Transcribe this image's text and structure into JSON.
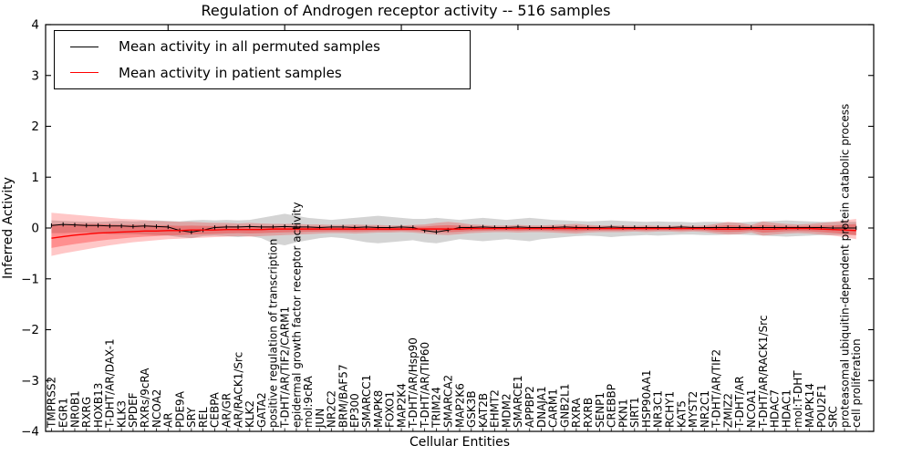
{
  "chart_data": {
    "type": "line",
    "title": "Regulation of Androgen receptor activity -- 516 samples",
    "xlabel": "Cellular Entities",
    "ylabel": "Inferred Activity",
    "ylim": [
      -4,
      4
    ],
    "yticks": [
      4,
      3,
      2,
      1,
      0,
      -1,
      -2,
      -3,
      -4
    ],
    "grid": false,
    "legend_position": "upper left",
    "sample_count_in_title": "516",
    "categories": [
      "TMPRSS2",
      "EGR1",
      "NR0B1",
      "RXRG",
      "HOXB13",
      "T-DHT/AR/DAX-1",
      "KLK3",
      "SPDEF",
      "RXRs/9cRA",
      "NCOA2",
      "AR",
      "PDE9A",
      "SRY",
      "REL",
      "CEBPA",
      "AR/GR",
      "AR/RACK1/Src",
      "KLK2",
      "GATA2",
      "positive regulation of transcription",
      "T-DHT/AR/TIF2/CARM1",
      "epidermal growth factor receptor activity",
      "mol:9cRA",
      "JUN",
      "NR2C2",
      "BRM/BAF57",
      "EP300",
      "SMARCC1",
      "MAPK8",
      "FOXO1",
      "MAP2K4",
      "T-DHT/AR/Hsp90",
      "T-DHT/AR/TIP60",
      "TRIM24",
      "SMARCA2",
      "MAP2K6",
      "GSK3B",
      "KAT2B",
      "EHMT2",
      "MDM2",
      "SMARCE1",
      "APPBP2",
      "DNAJA1",
      "CARM1",
      "GNB2L1",
      "RXRA",
      "RXRB",
      "SENP1",
      "CREBBP",
      "PKN1",
      "SIRT1",
      "HSP90AA1",
      "NR3C1",
      "RCHY1",
      "KAT5",
      "MYST2",
      "NR2C1",
      "T-DHT/AR/TIF2",
      "ZMIZ2",
      "T-DHT/AR",
      "NCOA1",
      "T-DHT/AR/RACK1/Src",
      "HDAC7",
      "HDAC1",
      "mol:T-DHT",
      "MAPK14",
      "POU2F1",
      "SRC",
      "proteasomal ubiquitin-dependent protein catabolic process",
      "cell proliferation"
    ],
    "series": [
      {
        "name": "Mean activity in all permuted samples",
        "color": "#000000",
        "band_color": "#787878",
        "values": [
          0.05,
          0.07,
          0.06,
          0.05,
          0.05,
          0.04,
          0.04,
          0.03,
          0.04,
          0.03,
          0.02,
          -0.05,
          -0.08,
          -0.04,
          0.01,
          0.02,
          0.02,
          0.03,
          0.02,
          0.02,
          0.03,
          0.02,
          0.02,
          0.01,
          0.02,
          0.02,
          0.01,
          0.02,
          0.01,
          0.01,
          0.02,
          0.01,
          -0.05,
          -0.08,
          -0.04,
          0.01,
          0.01,
          0.02,
          0.01,
          0.01,
          0.02,
          0.01,
          0.01,
          0.01,
          0.02,
          0.01,
          0.01,
          0.01,
          0.02,
          0.01,
          0.01,
          0.01,
          0.01,
          0.01,
          0.02,
          0.01,
          0.01,
          0.01,
          0.01,
          0.01,
          0.01,
          0.01,
          0.01,
          0.01,
          0.01,
          0.01,
          0.01,
          0.0,
          0.0,
          0.0
        ],
        "band_upper": [
          0.15,
          0.14,
          0.13,
          0.12,
          0.12,
          0.13,
          0.14,
          0.13,
          0.14,
          0.15,
          0.14,
          0.13,
          0.15,
          0.16,
          0.15,
          0.16,
          0.15,
          0.16,
          0.2,
          0.24,
          0.28,
          0.24,
          0.2,
          0.18,
          0.16,
          0.18,
          0.2,
          0.22,
          0.24,
          0.22,
          0.2,
          0.18,
          0.18,
          0.2,
          0.18,
          0.16,
          0.18,
          0.2,
          0.18,
          0.16,
          0.18,
          0.2,
          0.18,
          0.16,
          0.15,
          0.14,
          0.13,
          0.14,
          0.15,
          0.14,
          0.13,
          0.12,
          0.13,
          0.12,
          0.12,
          0.11,
          0.12,
          0.12,
          0.11,
          0.11,
          0.12,
          0.13,
          0.14,
          0.15,
          0.14,
          0.13,
          0.12,
          0.12,
          0.12,
          0.12
        ],
        "band_lower": [
          -0.1,
          -0.1,
          -0.09,
          -0.09,
          -0.1,
          -0.12,
          -0.12,
          -0.12,
          -0.13,
          -0.14,
          -0.15,
          -0.18,
          -0.2,
          -0.16,
          -0.15,
          -0.16,
          -0.18,
          -0.16,
          -0.2,
          -0.3,
          -0.34,
          -0.28,
          -0.24,
          -0.2,
          -0.18,
          -0.2,
          -0.24,
          -0.28,
          -0.3,
          -0.28,
          -0.26,
          -0.24,
          -0.28,
          -0.3,
          -0.26,
          -0.22,
          -0.24,
          -0.26,
          -0.24,
          -0.22,
          -0.24,
          -0.26,
          -0.22,
          -0.2,
          -0.18,
          -0.16,
          -0.15,
          -0.16,
          -0.18,
          -0.16,
          -0.15,
          -0.14,
          -0.15,
          -0.14,
          -0.13,
          -0.13,
          -0.14,
          -0.14,
          -0.13,
          -0.13,
          -0.14,
          -0.15,
          -0.16,
          -0.17,
          -0.16,
          -0.15,
          -0.14,
          -0.14,
          -0.14,
          -0.14
        ]
      },
      {
        "name": "Mean activity in patient samples",
        "color": "#ff0000",
        "band_color": "#ff0000",
        "values": [
          -0.2,
          -0.17,
          -0.14,
          -0.12,
          -0.1,
          -0.09,
          -0.08,
          -0.07,
          -0.06,
          -0.06,
          -0.05,
          -0.05,
          -0.04,
          -0.04,
          -0.04,
          -0.03,
          -0.03,
          -0.03,
          -0.03,
          -0.02,
          -0.02,
          -0.02,
          -0.02,
          -0.02,
          -0.02,
          -0.02,
          -0.02,
          -0.02,
          -0.02,
          -0.02,
          -0.02,
          -0.02,
          -0.02,
          -0.02,
          -0.02,
          -0.02,
          -0.01,
          -0.01,
          -0.01,
          -0.01,
          -0.01,
          -0.01,
          -0.01,
          -0.01,
          -0.01,
          -0.01,
          -0.01,
          -0.01,
          -0.01,
          -0.01,
          -0.01,
          -0.01,
          -0.01,
          -0.01,
          -0.01,
          -0.01,
          -0.01,
          -0.02,
          -0.02,
          -0.02,
          -0.01,
          -0.02,
          -0.02,
          -0.01,
          -0.01,
          -0.01,
          -0.02,
          -0.03,
          -0.04,
          -0.05
        ],
        "band_upper": [
          0.3,
          0.28,
          0.26,
          0.24,
          0.22,
          0.2,
          0.18,
          0.17,
          0.16,
          0.14,
          0.13,
          0.12,
          0.12,
          0.11,
          0.1,
          0.1,
          0.09,
          0.1,
          0.09,
          0.08,
          0.08,
          0.08,
          0.07,
          0.07,
          0.06,
          0.06,
          0.07,
          0.06,
          0.06,
          0.05,
          0.05,
          0.06,
          0.07,
          0.1,
          0.12,
          0.1,
          0.07,
          0.06,
          0.05,
          0.05,
          0.06,
          0.05,
          0.05,
          0.06,
          0.07,
          0.08,
          0.06,
          0.05,
          0.05,
          0.05,
          0.04,
          0.05,
          0.04,
          0.04,
          0.05,
          0.04,
          0.05,
          0.08,
          0.12,
          0.1,
          0.06,
          0.13,
          0.1,
          0.08,
          0.07,
          0.08,
          0.1,
          0.12,
          0.15,
          0.18
        ],
        "band_lower": [
          -0.55,
          -0.5,
          -0.46,
          -0.42,
          -0.38,
          -0.34,
          -0.31,
          -0.28,
          -0.26,
          -0.24,
          -0.22,
          -0.21,
          -0.2,
          -0.19,
          -0.18,
          -0.17,
          -0.16,
          -0.17,
          -0.16,
          -0.15,
          -0.14,
          -0.13,
          -0.12,
          -0.11,
          -0.1,
          -0.1,
          -0.11,
          -0.1,
          -0.09,
          -0.09,
          -0.08,
          -0.09,
          -0.11,
          -0.13,
          -0.14,
          -0.12,
          -0.1,
          -0.09,
          -0.08,
          -0.08,
          -0.09,
          -0.08,
          -0.08,
          -0.09,
          -0.1,
          -0.11,
          -0.09,
          -0.08,
          -0.08,
          -0.08,
          -0.07,
          -0.08,
          -0.07,
          -0.07,
          -0.08,
          -0.07,
          -0.08,
          -0.11,
          -0.13,
          -0.12,
          -0.09,
          -0.15,
          -0.13,
          -0.11,
          -0.1,
          -0.11,
          -0.13,
          -0.15,
          -0.18,
          -0.22
        ]
      }
    ]
  }
}
